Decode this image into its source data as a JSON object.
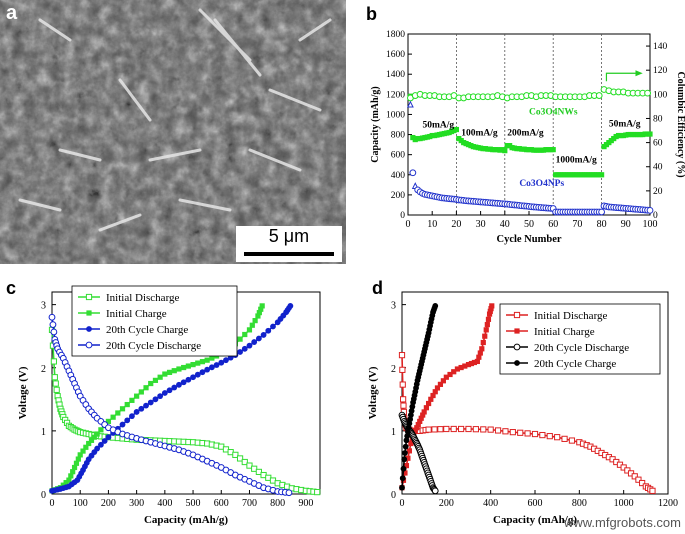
{
  "panels": {
    "a": "a",
    "b": "b",
    "c": "c",
    "d": "d"
  },
  "sem": {
    "scale_label": "5 μm"
  },
  "watermark": "www.mfgrobots.com",
  "chart_data": [
    {
      "id": "b",
      "type": "scatter",
      "xlabel": "Cycle Number",
      "ylabel": "Capacity (mAh/g)",
      "y2label": "Columbic Efficiency (%)",
      "xlim": [
        0,
        100
      ],
      "ylim": [
        0,
        1800
      ],
      "y2lim": [
        0,
        150
      ],
      "xticks": [
        0,
        10,
        20,
        30,
        40,
        50,
        60,
        70,
        80,
        90,
        100
      ],
      "yticks": [
        0,
        200,
        400,
        600,
        800,
        1000,
        1200,
        1400,
        1600,
        1800
      ],
      "y2ticks": [
        0,
        20,
        40,
        60,
        80,
        100,
        120,
        140
      ],
      "dividers": [
        20,
        40,
        60,
        80
      ],
      "annotations": [
        {
          "text": "50mA/g",
          "x": 6,
          "y": 870,
          "color": "#000"
        },
        {
          "text": "100mA/g",
          "x": 22,
          "y": 790,
          "color": "#000"
        },
        {
          "text": "200mA/g",
          "x": 41,
          "y": 790,
          "color": "#000"
        },
        {
          "text": "1000mA/g",
          "x": 61,
          "y": 520,
          "color": "#000"
        },
        {
          "text": "50mA/g",
          "x": 83,
          "y": 880,
          "color": "#000"
        },
        {
          "text": "Co3O4NWs",
          "x": 50,
          "y": 1000,
          "color": "#22cc22"
        },
        {
          "text": "Co3O4NPs",
          "x": 46,
          "y": 290,
          "color": "#2233cc"
        }
      ],
      "series": [
        {
          "name": "Co3O4NWs capacity",
          "color": "#22dd22",
          "x": [
            1,
            2,
            3,
            4,
            5,
            6,
            7,
            8,
            9,
            10,
            11,
            12,
            13,
            14,
            15,
            16,
            17,
            18,
            19,
            20,
            21,
            22,
            23,
            24,
            25,
            26,
            27,
            28,
            29,
            30,
            31,
            32,
            33,
            34,
            35,
            36,
            37,
            38,
            39,
            40,
            41,
            42,
            43,
            44,
            45,
            46,
            47,
            48,
            49,
            50,
            51,
            52,
            53,
            54,
            55,
            56,
            57,
            58,
            59,
            60,
            61,
            62,
            63,
            64,
            65,
            66,
            67,
            68,
            69,
            70,
            71,
            72,
            73,
            74,
            75,
            76,
            77,
            78,
            79,
            80,
            81,
            82,
            83,
            84,
            85,
            86,
            87,
            88,
            89,
            90,
            91,
            92,
            93,
            94,
            95,
            96,
            97,
            98,
            99,
            100
          ],
          "values": [
            1180,
            770,
            750,
            760,
            760,
            765,
            770,
            775,
            780,
            790,
            790,
            795,
            800,
            805,
            810,
            815,
            820,
            830,
            840,
            850,
            760,
            740,
            720,
            710,
            700,
            690,
            680,
            675,
            670,
            665,
            660,
            660,
            655,
            655,
            650,
            650,
            650,
            645,
            650,
            640,
            690,
            690,
            670,
            665,
            660,
            660,
            655,
            655,
            650,
            650,
            650,
            645,
            645,
            645,
            645,
            645,
            650,
            650,
            650,
            650,
            400,
            400,
            400,
            400,
            400,
            400,
            400,
            400,
            400,
            400,
            400,
            400,
            400,
            400,
            400,
            400,
            400,
            400,
            400,
            400,
            680,
            700,
            720,
            740,
            760,
            780,
            790,
            790,
            790,
            795,
            800,
            800,
            800,
            800,
            800,
            800,
            800,
            805,
            805,
            805
          ]
        },
        {
          "name": "Co3O4NWs efficiency",
          "color": "#22dd22",
          "axis": "y2",
          "x": [
            1,
            3,
            5,
            7,
            9,
            11,
            13,
            15,
            17,
            19,
            21,
            23,
            25,
            27,
            29,
            31,
            33,
            35,
            37,
            39,
            41,
            43,
            45,
            47,
            49,
            51,
            53,
            55,
            57,
            59,
            61,
            63,
            65,
            67,
            69,
            71,
            73,
            75,
            77,
            79,
            81,
            83,
            85,
            87,
            89,
            91,
            93,
            95,
            97,
            99
          ],
          "values": [
            97,
            99,
            100,
            99,
            99,
            99,
            98,
            98,
            98,
            99,
            97,
            97,
            98,
            98,
            98,
            98,
            98,
            98,
            99,
            98,
            97,
            98,
            98,
            98,
            99,
            99,
            98,
            99,
            99,
            99,
            98,
            98,
            98,
            98,
            98,
            98,
            98,
            99,
            99,
            99,
            104,
            103,
            102,
            102,
            102,
            101,
            101,
            101,
            101,
            101
          ]
        },
        {
          "name": "Co3O4NPs capacity",
          "color": "#2233cc",
          "x": [
            1,
            2,
            3,
            4,
            5,
            6,
            7,
            8,
            9,
            10,
            11,
            12,
            13,
            14,
            15,
            16,
            17,
            18,
            19,
            20,
            21,
            22,
            23,
            24,
            25,
            26,
            27,
            28,
            29,
            30,
            31,
            32,
            33,
            34,
            35,
            36,
            37,
            38,
            39,
            40,
            41,
            42,
            43,
            44,
            45,
            46,
            47,
            48,
            49,
            50,
            51,
            52,
            53,
            54,
            55,
            56,
            57,
            58,
            59,
            60,
            61,
            62,
            63,
            64,
            65,
            66,
            67,
            68,
            69,
            70,
            71,
            72,
            73,
            74,
            75,
            76,
            77,
            78,
            79,
            80,
            81,
            82,
            83,
            84,
            85,
            86,
            87,
            88,
            89,
            90,
            91,
            92,
            93,
            94,
            95,
            96,
            97,
            98,
            99,
            100
          ],
          "values": [
            1100,
            420,
            290,
            250,
            230,
            215,
            205,
            200,
            195,
            190,
            185,
            180,
            175,
            170,
            168,
            165,
            162,
            160,
            158,
            155,
            150,
            148,
            145,
            142,
            140,
            138,
            136,
            134,
            132,
            130,
            128,
            126,
            124,
            122,
            120,
            118,
            116,
            114,
            112,
            110,
            108,
            105,
            102,
            100,
            98,
            95,
            92,
            90,
            88,
            85,
            82,
            80,
            78,
            76,
            74,
            72,
            70,
            68,
            66,
            64,
            30,
            30,
            30,
            30,
            30,
            30,
            30,
            30,
            30,
            30,
            30,
            30,
            30,
            30,
            30,
            30,
            30,
            30,
            30,
            30,
            90,
            85,
            80,
            78,
            76,
            74,
            72,
            70,
            68,
            66,
            64,
            62,
            60,
            58,
            56,
            54,
            52,
            50,
            48,
            46
          ]
        }
      ]
    },
    {
      "id": "c",
      "type": "line",
      "xlabel": "Capacity (mAh/g)",
      "ylabel": "Voltage (V)",
      "xlim": [
        0,
        950
      ],
      "ylim": [
        0,
        3.2
      ],
      "xticks": [
        0,
        100,
        200,
        300,
        400,
        500,
        600,
        700,
        800,
        900
      ],
      "yticks": [
        0,
        1,
        2,
        3
      ],
      "legend": "top-left",
      "series": [
        {
          "name": "Initial Discharge",
          "color": "#33dd33",
          "marker": "open-square",
          "x": [
            0,
            10,
            20,
            30,
            40,
            60,
            80,
            100,
            130,
            160,
            200,
            250,
            300,
            350,
            400,
            450,
            500,
            550,
            600,
            650,
            700,
            750,
            800,
            850,
            900,
            940
          ],
          "values": [
            2.6,
            1.85,
            1.55,
            1.35,
            1.22,
            1.08,
            1.02,
            0.98,
            0.95,
            0.92,
            0.9,
            0.88,
            0.86,
            0.85,
            0.84,
            0.83,
            0.82,
            0.8,
            0.75,
            0.62,
            0.45,
            0.3,
            0.17,
            0.09,
            0.05,
            0.03
          ]
        },
        {
          "name": "Initial Charge",
          "color": "#33dd33",
          "marker": "filled-square",
          "x": [
            0,
            30,
            60,
            80,
            100,
            130,
            160,
            200,
            250,
            300,
            350,
            400,
            450,
            500,
            550,
            600,
            650,
            700,
            730,
            745
          ],
          "values": [
            0.05,
            0.1,
            0.22,
            0.42,
            0.62,
            0.8,
            0.95,
            1.15,
            1.35,
            1.55,
            1.75,
            1.9,
            1.98,
            2.05,
            2.12,
            2.22,
            2.38,
            2.6,
            2.82,
            2.98
          ]
        },
        {
          "name": "20th Cycle Charge",
          "color": "#1122cc",
          "marker": "filled-circle",
          "x": [
            0,
            30,
            60,
            90,
            110,
            130,
            160,
            200,
            250,
            300,
            350,
            400,
            450,
            500,
            550,
            600,
            650,
            700,
            750,
            800,
            830,
            845
          ],
          "values": [
            0.05,
            0.08,
            0.12,
            0.22,
            0.38,
            0.55,
            0.72,
            0.9,
            1.1,
            1.3,
            1.45,
            1.6,
            1.73,
            1.85,
            1.97,
            2.08,
            2.2,
            2.35,
            2.52,
            2.72,
            2.88,
            2.98
          ]
        },
        {
          "name": "20th Cycle Discharge",
          "color": "#1122cc",
          "marker": "open-circle",
          "x": [
            0,
            10,
            20,
            40,
            60,
            80,
            100,
            130,
            160,
            200,
            250,
            300,
            350,
            400,
            450,
            500,
            550,
            600,
            650,
            700,
            750,
            800,
            840
          ],
          "values": [
            2.8,
            2.45,
            2.3,
            2.15,
            1.95,
            1.75,
            1.55,
            1.35,
            1.2,
            1.05,
            0.95,
            0.88,
            0.82,
            0.76,
            0.7,
            0.62,
            0.52,
            0.42,
            0.3,
            0.2,
            0.1,
            0.04,
            0.02
          ]
        }
      ]
    },
    {
      "id": "d",
      "type": "line",
      "xlabel": "Capacity (mAh/g)",
      "ylabel": "Voltage (V)",
      "xlim": [
        0,
        1200
      ],
      "ylim": [
        0,
        3.2
      ],
      "xticks": [
        0,
        200,
        400,
        600,
        800,
        1000,
        1200
      ],
      "yticks": [
        0,
        1,
        2,
        3
      ],
      "legend": "top-right",
      "series": [
        {
          "name": "Initial Discharge",
          "color": "#dd2222",
          "marker": "open-square",
          "x": [
            0,
            5,
            10,
            20,
            40,
            80,
            120,
            200,
            300,
            400,
            500,
            600,
            700,
            800,
            850,
            900,
            950,
            1000,
            1050,
            1100,
            1130
          ],
          "values": [
            2.2,
            1.5,
            1.2,
            1.05,
            1.0,
            1.0,
            1.02,
            1.03,
            1.03,
            1.02,
            0.98,
            0.95,
            0.9,
            0.82,
            0.75,
            0.65,
            0.55,
            0.42,
            0.28,
            0.12,
            0.05
          ]
        },
        {
          "name": "Initial Charge",
          "color": "#dd2222",
          "marker": "filled-square",
          "x": [
            0,
            20,
            40,
            60,
            80,
            100,
            130,
            160,
            200,
            250,
            300,
            340,
            360,
            380,
            395,
            405
          ],
          "values": [
            0.1,
            0.45,
            0.8,
            1.0,
            1.15,
            1.3,
            1.5,
            1.68,
            1.85,
            1.98,
            2.05,
            2.1,
            2.3,
            2.6,
            2.85,
            2.98
          ]
        },
        {
          "name": "20th Cycle Discharge",
          "color": "#000000",
          "marker": "open-circle",
          "x": [
            0,
            10,
            20,
            30,
            40,
            50,
            60,
            70,
            80,
            90,
            100,
            110,
            120,
            130,
            140,
            150
          ],
          "values": [
            1.25,
            1.15,
            1.08,
            1.02,
            0.98,
            0.92,
            0.85,
            0.78,
            0.7,
            0.6,
            0.5,
            0.4,
            0.3,
            0.2,
            0.1,
            0.05
          ]
        },
        {
          "name": "20th Cycle Charge",
          "color": "#000000",
          "marker": "filled-circle",
          "x": [
            0,
            10,
            20,
            30,
            40,
            50,
            60,
            70,
            80,
            90,
            100,
            110,
            120,
            130,
            140,
            150
          ],
          "values": [
            0.1,
            0.55,
            0.85,
            1.05,
            1.25,
            1.45,
            1.62,
            1.8,
            1.95,
            2.1,
            2.25,
            2.4,
            2.55,
            2.72,
            2.88,
            2.98
          ]
        }
      ]
    }
  ]
}
